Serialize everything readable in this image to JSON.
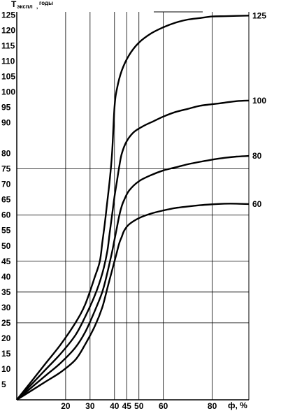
{
  "chart_data": {
    "type": "line",
    "ylabel_main": "T",
    "ylabel_sub": "экспл",
    "ylabel_suffix": ",",
    "ylabel_sup": "годы",
    "xlabel": "ф, %",
    "x_ticks": [
      "20",
      "30",
      "40",
      "45",
      "50",
      "60",
      "80"
    ],
    "x_tick_values": [
      20,
      30,
      40,
      45,
      50,
      60,
      80
    ],
    "y_ticks": [
      "5",
      "10",
      "15",
      "20",
      "25",
      "30",
      "35",
      "40",
      "45",
      "50",
      "55",
      "60",
      "65",
      "70",
      "75",
      "80",
      "90",
      "95",
      "100",
      "105",
      "110",
      "115",
      "120",
      "125"
    ],
    "y_tick_values": [
      5,
      10,
      15,
      20,
      25,
      30,
      35,
      40,
      45,
      50,
      55,
      60,
      65,
      70,
      75,
      80,
      90,
      95,
      100,
      105,
      110,
      115,
      120,
      125
    ],
    "xlim": [
      0,
      95
    ],
    "ylim": [
      0,
      126
    ],
    "grid": true,
    "series": [
      {
        "name": "125",
        "x": [
          0,
          6,
          12,
          18,
          24,
          28,
          32,
          34,
          35,
          36,
          37,
          38,
          39,
          40,
          41,
          43,
          46,
          50,
          55,
          60,
          65,
          70,
          75,
          80,
          85,
          90,
          95
        ],
        "y": [
          0,
          6,
          12,
          18,
          25,
          31,
          40,
          45,
          51,
          57,
          64,
          71,
          80,
          95,
          101,
          107,
          112,
          116,
          119,
          121,
          122.5,
          123.5,
          124,
          124.5,
          124.6,
          124.7,
          124.8
        ]
      },
      {
        "name": "100",
        "x": [
          0,
          6,
          12,
          18,
          24,
          28,
          32,
          35,
          37,
          38,
          39,
          40,
          41,
          42,
          43,
          45,
          48,
          52,
          56,
          60,
          65,
          70,
          75,
          80,
          85,
          90,
          95
        ],
        "y": [
          0,
          5,
          10,
          15,
          21,
          27,
          34,
          41,
          48,
          54,
          60,
          66,
          71,
          76,
          80,
          84,
          87,
          89,
          90.5,
          92,
          93.5,
          94.5,
          95.5,
          96,
          96.5,
          97,
          97.2
        ]
      },
      {
        "name": "80",
        "x": [
          0,
          6,
          12,
          18,
          24,
          28,
          32,
          35,
          37,
          39,
          40,
          41,
          42,
          43,
          44,
          46,
          50,
          55,
          60,
          65,
          70,
          75,
          80,
          85,
          90,
          95
        ],
        "y": [
          0,
          4,
          8,
          12,
          17,
          22,
          29,
          35,
          41,
          48,
          52,
          56,
          60,
          63,
          65,
          68,
          71,
          73,
          74.5,
          75.5,
          76.5,
          77.3,
          78,
          78.6,
          79,
          79.2
        ]
      },
      {
        "name": "60",
        "x": [
          0,
          6,
          12,
          18,
          24,
          28,
          32,
          35,
          37,
          39,
          40,
          41,
          42,
          43,
          44,
          46,
          50,
          55,
          60,
          65,
          70,
          75,
          80,
          85,
          90,
          95
        ],
        "y": [
          0,
          3,
          6,
          9,
          13,
          18,
          24,
          30,
          36,
          42,
          45,
          48,
          51,
          53,
          55,
          57,
          59,
          60.5,
          61.5,
          62.3,
          62.8,
          63.2,
          63.5,
          63.7,
          63.7,
          63.6
        ]
      }
    ]
  }
}
